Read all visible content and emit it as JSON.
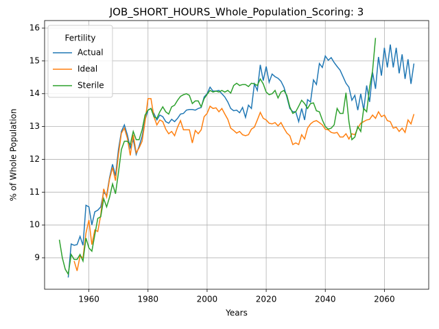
{
  "chart_data": {
    "type": "line",
    "title": "JOB_SHORT_HOURS_Whole_Population_Scoring: 3",
    "xlabel": "Years",
    "ylabel": "% of Whole Population",
    "legend_title": "Fertility",
    "legend": "upper left",
    "grid": true,
    "xlim": [
      1945,
      2075
    ],
    "ylim": [
      8.04,
      16.23
    ],
    "xticks": [
      1960,
      1980,
      2000,
      2020,
      2040,
      2060
    ],
    "yticks": [
      9,
      10,
      11,
      12,
      13,
      14,
      15,
      16
    ],
    "x": [
      1950,
      1951,
      1952,
      1953,
      1954,
      1955,
      1956,
      1957,
      1958,
      1959,
      1960,
      1961,
      1962,
      1963,
      1964,
      1965,
      1966,
      1967,
      1968,
      1969,
      1970,
      1971,
      1972,
      1973,
      1974,
      1975,
      1976,
      1977,
      1978,
      1979,
      1980,
      1981,
      1982,
      1983,
      1984,
      1985,
      1986,
      1987,
      1988,
      1989,
      1990,
      1991,
      1992,
      1993,
      1994,
      1995,
      1996,
      1997,
      1998,
      1999,
      2000,
      2001,
      2002,
      2003,
      2004,
      2005,
      2006,
      2007,
      2008,
      2009,
      2010,
      2011,
      2012,
      2013,
      2014,
      2015,
      2016,
      2017,
      2018,
      2019,
      2020,
      2021,
      2022,
      2023,
      2024,
      2025,
      2026,
      2027,
      2028,
      2029,
      2030,
      2031,
      2032,
      2033,
      2034,
      2035,
      2036,
      2037,
      2038,
      2039,
      2040,
      2041,
      2042,
      2043,
      2044,
      2045,
      2046,
      2047,
      2048,
      2049,
      2050,
      2051,
      2052,
      2053,
      2054,
      2055,
      2056,
      2057,
      2058,
      2059,
      2060,
      2061,
      2062,
      2063,
      2064,
      2065,
      2066,
      2067,
      2068,
      2069,
      2070
    ],
    "series": [
      {
        "name": "Actual",
        "color": "#1f77b4",
        "values": [
          null,
          null,
          null,
          8.4,
          9.42,
          9.38,
          9.4,
          9.65,
          9.38,
          10.6,
          10.55,
          10.0,
          10.4,
          10.45,
          10.55,
          11.0,
          10.9,
          11.45,
          11.85,
          11.5,
          12.3,
          12.85,
          13.05,
          12.75,
          12.35,
          12.6,
          12.15,
          12.4,
          12.7,
          13.2,
          13.5,
          13.55,
          13.4,
          13.2,
          13.35,
          13.3,
          13.15,
          13.1,
          13.22,
          13.15,
          13.25,
          13.38,
          13.4,
          13.5,
          13.52,
          13.52,
          13.5,
          13.55,
          13.58,
          13.9,
          14.0,
          14.2,
          14.08,
          14.08,
          14.1,
          14.0,
          13.9,
          13.75,
          13.55,
          13.48,
          13.5,
          13.42,
          13.58,
          13.28,
          13.65,
          13.55,
          14.3,
          14.1,
          14.88,
          14.4,
          14.83,
          14.35,
          14.6,
          14.52,
          14.47,
          14.38,
          14.2,
          13.9,
          13.55,
          13.45,
          13.45,
          13.15,
          13.55,
          13.2,
          13.82,
          13.75,
          14.42,
          14.28,
          14.92,
          14.8,
          15.15,
          15.02,
          15.1,
          14.95,
          14.83,
          14.72,
          14.52,
          14.32,
          14.2,
          13.8,
          13.95,
          13.5,
          14.0,
          13.5,
          14.25,
          13.75,
          14.65,
          14.15,
          15.12,
          14.55,
          15.4,
          14.8,
          15.5,
          14.8,
          15.4,
          14.62,
          15.2,
          14.45,
          15.05,
          14.3,
          14.92
        ]
      },
      {
        "name": "Ideal",
        "color": "#ff7f0e",
        "values": [
          null,
          null,
          null,
          null,
          null,
          8.9,
          8.6,
          9.05,
          9.0,
          9.75,
          10.15,
          9.4,
          9.85,
          9.8,
          10.3,
          11.1,
          10.85,
          11.4,
          11.75,
          11.35,
          12.15,
          12.8,
          12.95,
          12.65,
          12.12,
          12.75,
          12.2,
          12.35,
          12.55,
          13.15,
          13.85,
          13.85,
          13.3,
          13.05,
          13.2,
          13.15,
          12.92,
          12.78,
          12.85,
          12.72,
          12.98,
          13.18,
          12.9,
          12.9,
          12.9,
          12.5,
          12.88,
          12.78,
          12.9,
          13.3,
          13.4,
          13.62,
          13.55,
          13.57,
          13.45,
          13.55,
          13.38,
          13.22,
          12.95,
          12.88,
          12.8,
          12.85,
          12.75,
          12.72,
          12.75,
          12.92,
          12.98,
          13.2,
          13.43,
          13.25,
          13.2,
          13.1,
          13.08,
          13.12,
          13.02,
          13.12,
          12.95,
          12.8,
          12.72,
          12.45,
          12.5,
          12.45,
          12.75,
          12.62,
          12.95,
          13.08,
          13.15,
          13.18,
          13.12,
          13.05,
          12.92,
          12.9,
          12.82,
          12.8,
          12.82,
          12.68,
          12.68,
          12.78,
          12.62,
          12.78,
          12.75,
          12.95,
          13.1,
          13.15,
          13.2,
          13.22,
          13.35,
          13.25,
          13.45,
          13.3,
          13.35,
          13.18,
          13.15,
          12.95,
          12.98,
          12.85,
          12.95,
          12.82,
          13.2,
          13.08,
          13.38
        ]
      },
      {
        "name": "Sterile",
        "color": "#2ca02c",
        "values": [
          9.55,
          9.0,
          8.65,
          8.5,
          9.1,
          8.95,
          8.95,
          9.1,
          8.9,
          9.6,
          9.3,
          9.2,
          9.7,
          10.2,
          10.25,
          10.8,
          10.55,
          10.85,
          11.25,
          10.95,
          11.6,
          12.3,
          12.55,
          12.55,
          12.45,
          12.85,
          12.6,
          12.6,
          12.9,
          13.35,
          13.5,
          13.55,
          13.3,
          13.25,
          13.45,
          13.6,
          13.45,
          13.38,
          13.6,
          13.65,
          13.8,
          13.92,
          13.97,
          14.0,
          13.95,
          13.7,
          13.78,
          13.78,
          13.6,
          13.85,
          13.98,
          14.1,
          14.05,
          14.08,
          14.05,
          14.1,
          14.05,
          14.1,
          14.02,
          14.25,
          14.32,
          14.25,
          14.28,
          14.28,
          14.22,
          14.32,
          14.3,
          14.25,
          14.45,
          14.3,
          14.05,
          13.97,
          14.0,
          14.1,
          13.87,
          14.05,
          14.1,
          13.95,
          13.6,
          13.4,
          13.45,
          13.62,
          13.8,
          13.7,
          13.55,
          13.7,
          13.72,
          13.48,
          13.45,
          13.2,
          13.0,
          12.92,
          12.95,
          13.05,
          13.55,
          13.4,
          13.4,
          14.03,
          13.15,
          12.6,
          12.68,
          13.0,
          12.85,
          13.55,
          13.45,
          14.2,
          14.7,
          15.7,
          null,
          null,
          null,
          null,
          null,
          null,
          null,
          null,
          null,
          null,
          null,
          null,
          null
        ]
      }
    ]
  }
}
